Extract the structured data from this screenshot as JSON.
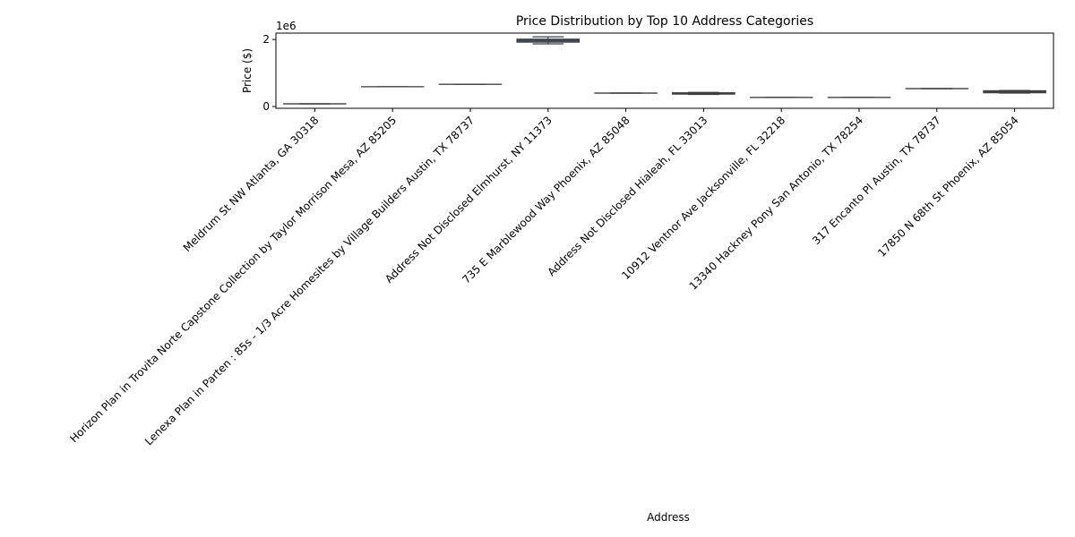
{
  "chart_data": {
    "type": "box",
    "title": "Price Distribution by Top 10 Address Categories",
    "x_label": "Address",
    "y_label": "Price ($)",
    "y_offset_label": "1e6",
    "categories": [
      "Meldrum St NW Atlanta, GA 30318",
      "Horizon Plan in Trovita Norte Capstone Collection by Taylor Morrison Mesa, AZ 85205",
      "Lenexa Plan in Parten : 85s - 1/3 Acre Homesites by Village Builders Austin, TX 78737",
      "Address Not Disclosed Elmhurst, NY 11373",
      "735 E Marblewood Way Phoenix, AZ 85048",
      "Address Not Disclosed Hialeah, FL 33013",
      "10912 Ventnor Ave Jacksonville, FL 32218",
      "13340 Hackney Pony San Antonio, TX 78254",
      "317 Encanto Pl Austin, TX 78737",
      "17850 N 68th St Phoenix, AZ 85054"
    ],
    "stats": [
      [
        80000,
        80000,
        80000,
        80000,
        80000
      ],
      [
        590000,
        590000,
        590000,
        590000,
        590000
      ],
      [
        665000,
        665000,
        665000,
        665000,
        665000
      ],
      [
        1870000,
        1920000,
        1970000,
        2010000,
        2080000
      ],
      [
        400000,
        400000,
        400000,
        400000,
        400000
      ],
      [
        360000,
        370000,
        390000,
        410000,
        420000
      ],
      [
        270000,
        270000,
        270000,
        270000,
        270000
      ],
      [
        270000,
        270000,
        270000,
        270000,
        270000
      ],
      [
        535000,
        535000,
        535000,
        535000,
        535000
      ],
      [
        400000,
        410000,
        440000,
        470000,
        480000
      ]
    ],
    "color": "#3e5f8a",
    "edge_color": "#3f3f3f",
    "ylim": [
      -53000,
      2190000
    ],
    "yticks": [
      0,
      {
        "value": 2000000,
        "label": "2"
      }
    ]
  }
}
